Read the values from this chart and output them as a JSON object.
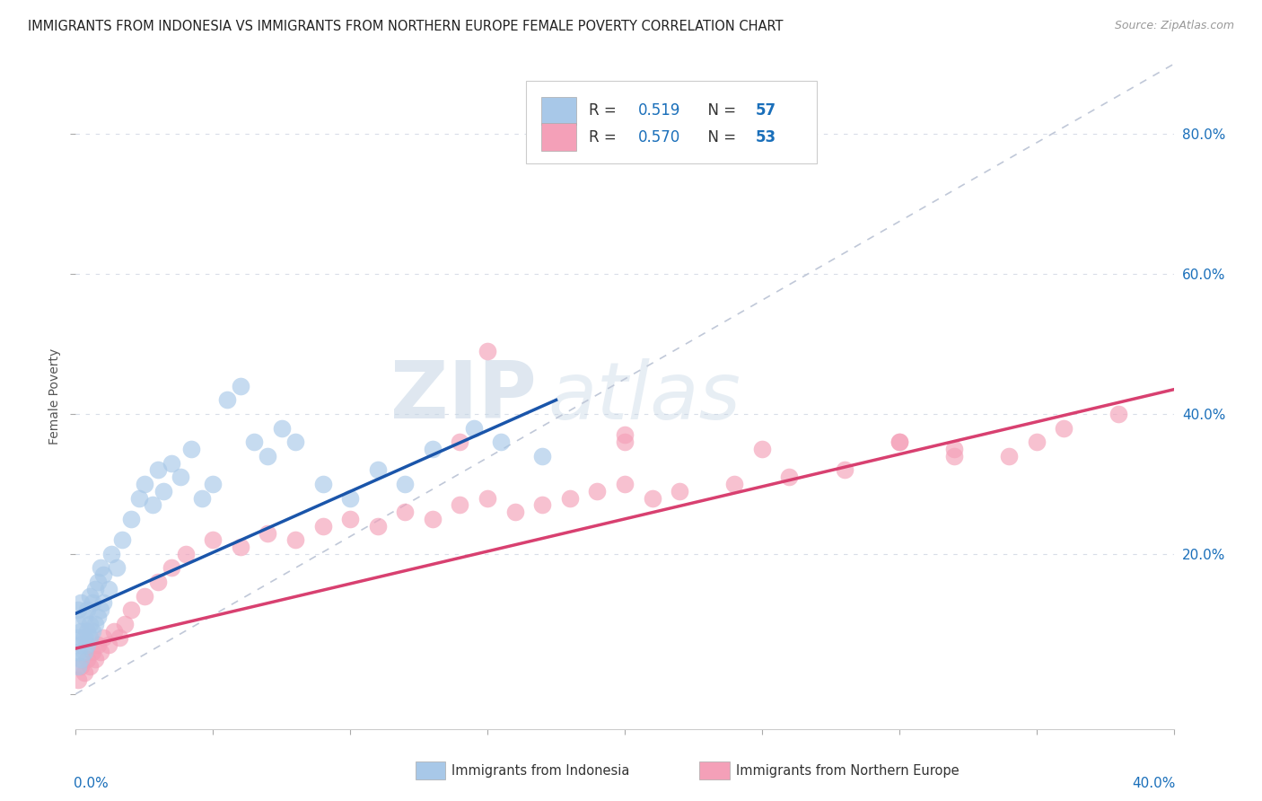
{
  "title": "IMMIGRANTS FROM INDONESIA VS IMMIGRANTS FROM NORTHERN EUROPE FEMALE POVERTY CORRELATION CHART",
  "source": "Source: ZipAtlas.com",
  "ylabel": "Female Poverty",
  "y_ticks": [
    0.0,
    0.2,
    0.4,
    0.6,
    0.8
  ],
  "x_lim": [
    0.0,
    0.4
  ],
  "y_lim": [
    -0.05,
    0.9
  ],
  "R_indonesia": 0.519,
  "N_indonesia": 57,
  "R_northern_europe": 0.57,
  "N_northern_europe": 53,
  "color_indonesia": "#a8c8e8",
  "color_northern_europe": "#f4a0b8",
  "color_accent": "#1a6fba",
  "trend_color_indonesia": "#1a55aa",
  "trend_color_northern": "#d84070",
  "diagonal_color": "#c0c8d8",
  "watermark_zip": "ZIP",
  "watermark_atlas": "atlas",
  "background_color": "#ffffff",
  "grid_color": "#d8dde8",
  "indo_x": [
    0.001,
    0.001,
    0.001,
    0.001,
    0.001,
    0.002,
    0.002,
    0.002,
    0.002,
    0.003,
    0.003,
    0.003,
    0.004,
    0.004,
    0.004,
    0.005,
    0.005,
    0.005,
    0.006,
    0.006,
    0.007,
    0.007,
    0.008,
    0.008,
    0.009,
    0.009,
    0.01,
    0.01,
    0.012,
    0.013,
    0.015,
    0.017,
    0.02,
    0.023,
    0.025,
    0.028,
    0.03,
    0.032,
    0.035,
    0.038,
    0.042,
    0.046,
    0.05,
    0.055,
    0.06,
    0.065,
    0.07,
    0.075,
    0.08,
    0.09,
    0.1,
    0.11,
    0.12,
    0.13,
    0.145,
    0.155,
    0.17
  ],
  "indo_y": [
    0.04,
    0.06,
    0.08,
    0.1,
    0.12,
    0.05,
    0.07,
    0.09,
    0.13,
    0.06,
    0.08,
    0.11,
    0.07,
    0.09,
    0.12,
    0.08,
    0.1,
    0.14,
    0.09,
    0.13,
    0.1,
    0.15,
    0.11,
    0.16,
    0.12,
    0.18,
    0.13,
    0.17,
    0.15,
    0.2,
    0.18,
    0.22,
    0.25,
    0.28,
    0.3,
    0.27,
    0.32,
    0.29,
    0.33,
    0.31,
    0.35,
    0.28,
    0.3,
    0.42,
    0.44,
    0.36,
    0.34,
    0.38,
    0.36,
    0.3,
    0.28,
    0.32,
    0.3,
    0.35,
    0.38,
    0.36,
    0.34
  ],
  "north_x": [
    0.001,
    0.002,
    0.003,
    0.004,
    0.005,
    0.006,
    0.007,
    0.008,
    0.009,
    0.01,
    0.012,
    0.014,
    0.016,
    0.018,
    0.02,
    0.025,
    0.03,
    0.035,
    0.04,
    0.05,
    0.06,
    0.07,
    0.08,
    0.09,
    0.1,
    0.11,
    0.12,
    0.13,
    0.14,
    0.15,
    0.16,
    0.17,
    0.18,
    0.19,
    0.2,
    0.21,
    0.22,
    0.24,
    0.26,
    0.28,
    0.3,
    0.32,
    0.34,
    0.36,
    0.38,
    0.15,
    0.2,
    0.25,
    0.3,
    0.32,
    0.35,
    0.14,
    0.2
  ],
  "north_y": [
    0.02,
    0.04,
    0.03,
    0.05,
    0.04,
    0.06,
    0.05,
    0.07,
    0.06,
    0.08,
    0.07,
    0.09,
    0.08,
    0.1,
    0.12,
    0.14,
    0.16,
    0.18,
    0.2,
    0.22,
    0.21,
    0.23,
    0.22,
    0.24,
    0.25,
    0.24,
    0.26,
    0.25,
    0.27,
    0.28,
    0.26,
    0.27,
    0.28,
    0.29,
    0.3,
    0.28,
    0.29,
    0.3,
    0.31,
    0.32,
    0.36,
    0.35,
    0.34,
    0.38,
    0.4,
    0.49,
    0.36,
    0.35,
    0.36,
    0.34,
    0.36,
    0.36,
    0.37
  ],
  "indo_trend_x0": 0.0,
  "indo_trend_y0": 0.115,
  "indo_trend_x1": 0.175,
  "indo_trend_y1": 0.42,
  "north_trend_x0": 0.0,
  "north_trend_y0": 0.065,
  "north_trend_x1": 0.4,
  "north_trend_y1": 0.435
}
